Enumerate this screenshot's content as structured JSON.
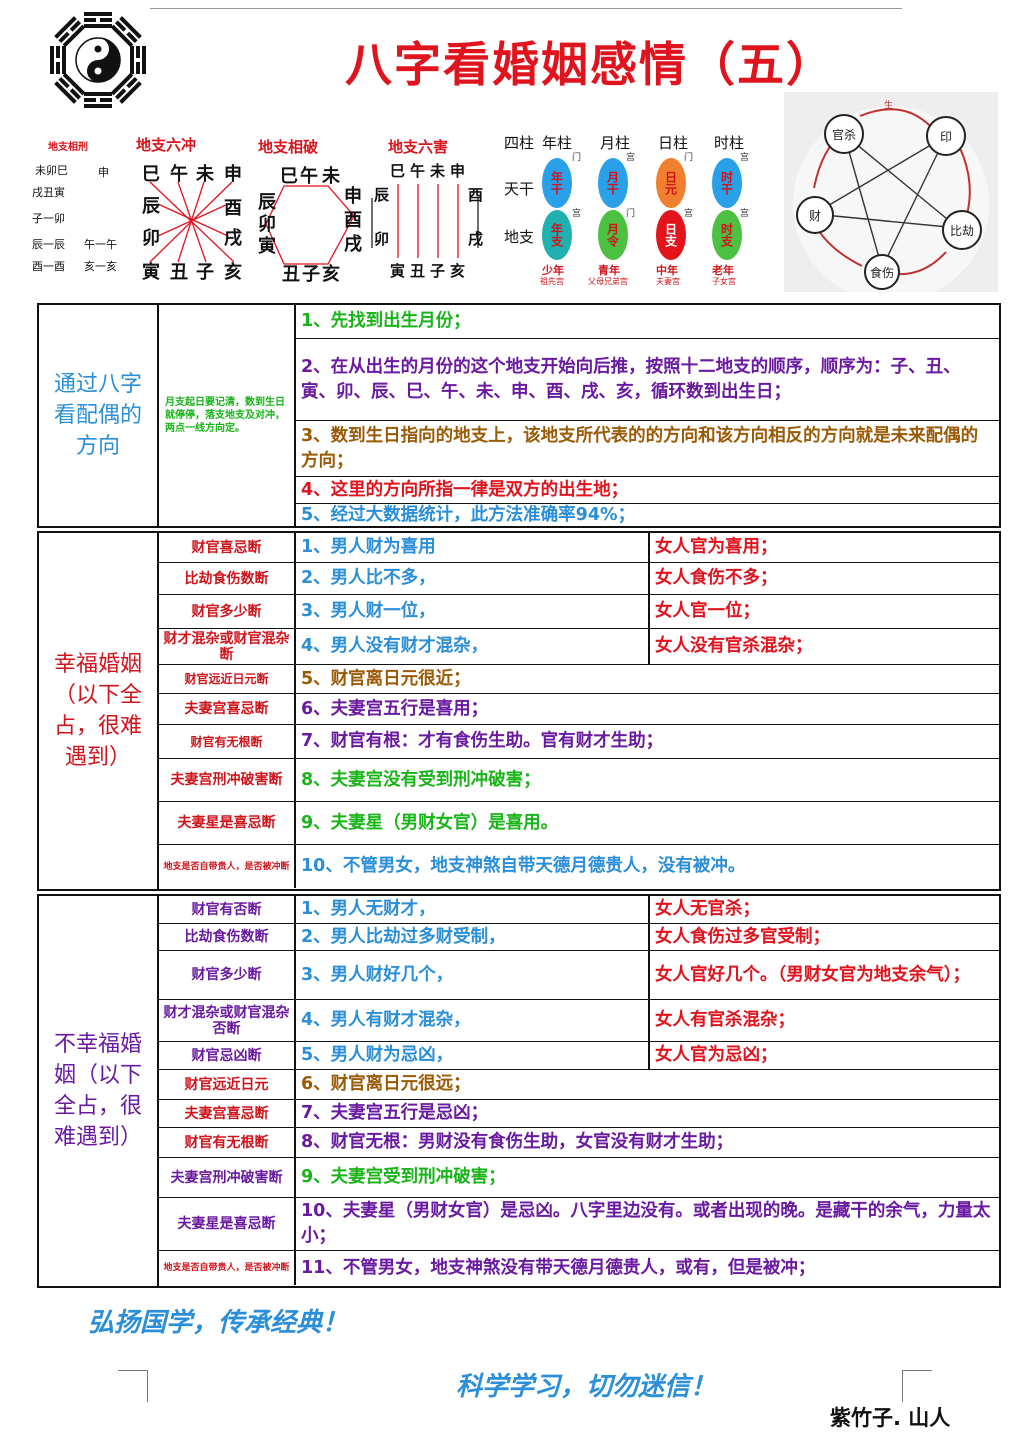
{
  "title": "八字看婚姻感情（五）",
  "banner": {
    "xiangxing": {
      "title": "地支相刑",
      "rows": [
        "未卯巳",
        "戌丑寅",
        "子一卯",
        "辰一辰",
        "酉一酉"
      ],
      "rows_right": [
        "申",
        "午一午",
        "亥一亥"
      ]
    },
    "liuchong": {
      "title": "地支六冲",
      "top": [
        "巳",
        "午",
        "未",
        "申"
      ],
      "left": [
        "辰",
        "卯"
      ],
      "right": [
        "酉",
        "戌"
      ],
      "bottom": [
        "寅",
        "丑",
        "子",
        "亥"
      ]
    },
    "xiangpo": {
      "title": "地支相破",
      "top": [
        "巳",
        "午",
        "未"
      ],
      "left": [
        "辰",
        "卯",
        "寅"
      ],
      "right": [
        "申",
        "酉",
        "戌"
      ],
      "bottom": [
        "丑",
        "子",
        "亥"
      ]
    },
    "liuhai": {
      "title": "地支六害",
      "top": [
        "巳",
        "午",
        "未",
        "申"
      ],
      "left": [
        "辰",
        "卯"
      ],
      "right": [
        "酉",
        "戌"
      ],
      "bottom": [
        "寅",
        "丑",
        "子",
        "亥"
      ]
    },
    "pillars": {
      "headers": [
        "四柱",
        "年柱",
        "月柱",
        "日柱",
        "时柱"
      ],
      "row_labels": [
        "天干",
        "地支"
      ],
      "stems": [
        "年干",
        "月干",
        "日元",
        "时干"
      ],
      "branches": [
        "年支",
        "月令",
        "日支",
        "时支"
      ],
      "ages": [
        "少年",
        "青年",
        "中年",
        "老年"
      ],
      "palaces": [
        "祖先宫",
        "父母兄弟宫",
        "夫妻宫",
        "子女宫"
      ],
      "side_notes": [
        "门",
        "宫",
        "门",
        "宫",
        "宫",
        "门",
        "宫",
        "宫"
      ],
      "colors": {
        "blue": "#2aa0e8",
        "green": "#4cc040",
        "red": "#e4141c",
        "orange": "#f08030",
        "teal": "#20b0b0"
      }
    },
    "wuxing": {
      "nodes": [
        "官杀",
        "印",
        "比劫",
        "食伤",
        "财"
      ],
      "top_label": "生"
    }
  },
  "section1": {
    "label": "通过八字看配偶的方向",
    "note": "月支起日要记清，数到生日就停停，落支地支及对冲，两点一线方向定。",
    "rows": [
      "1、先找到出生月份；",
      "2、在从出生的月份的这个地支开始向后推，按照十二地支的顺序，顺序为：子、丑、寅、卯、辰、巳、午、未、申、酉、戌、亥，循环数到出生日；",
      "3、数到生日指向的地支上，该地支所代表的的方向和该方向相反的方向就是未来配偶的方向；",
      "4、这里的方向所指一律是双方的出生地；",
      "5、经过大数据统计，此方法准确率94%；"
    ]
  },
  "section2": {
    "label": "幸福婚姻（以下全占，很难遇到）",
    "rows": [
      {
        "cat": "财官喜忌断",
        "left": "1、男人财为喜用",
        "right": "女人官为喜用；"
      },
      {
        "cat": "比劫食伤数断",
        "left": "2、男人比不多，",
        "right": "女人食伤不多；"
      },
      {
        "cat": "财官多少断",
        "left": "3、男人财一位，",
        "right": "女人官一位；"
      },
      {
        "cat": "财才混杂或财官混杂断",
        "left": "4、男人没有财才混杂，",
        "right": "女人没有官杀混杂；"
      },
      {
        "cat": "财官远近日元断",
        "text": "5、财官离日元很近；"
      },
      {
        "cat": "夫妻宫喜忌断",
        "text": "6、夫妻宫五行是喜用；"
      },
      {
        "cat": "财官有无根断",
        "text": "7、财官有根：才有食伤生助。官有财才生助；"
      },
      {
        "cat": "夫妻宫刑冲破害断",
        "text": "8、夫妻宫没有受到刑冲破害；"
      },
      {
        "cat": "夫妻星是喜忌断",
        "text": "9、夫妻星（男财女官）是喜用。"
      },
      {
        "cat": "地支是否自带贵人，是否被冲断",
        "text": "10、不管男女，地支神煞自带天德月德贵人，没有被冲。"
      }
    ]
  },
  "section3": {
    "label": "不幸福婚姻（以下全占，很难遇到）",
    "rows": [
      {
        "cat": "财官有否断",
        "left": "1、男人无财才，",
        "right": "女人无官杀；"
      },
      {
        "cat": "比劫食伤数断",
        "left": "2、男人比劫过多财受制，",
        "right": "女人食伤过多官受制；"
      },
      {
        "cat": "财官多少断",
        "left": "3、男人财好几个，",
        "right": "女人官好几个。（男财女官为地支余气）；"
      },
      {
        "cat": "财才混杂或财官混杂否断",
        "left": "4、男人有财才混杂，",
        "right": "女人有官杀混杂；"
      },
      {
        "cat": "财官忌凶断",
        "left": "5、男人财为忌凶，",
        "right": "女人官为忌凶；"
      },
      {
        "cat": "财官远近日元",
        "text": "6、财官离日元很远；"
      },
      {
        "cat": "夫妻宫喜忌断",
        "text": "7、夫妻宫五行是忌凶；"
      },
      {
        "cat": "财官有无根断",
        "text": "8、财官无根：男财没有食伤生助，女官没有财才生助；"
      },
      {
        "cat": "夫妻宫刑冲破害断",
        "text": "9、夫妻宫受到刑冲破害；"
      },
      {
        "cat": "夫妻星是喜忌断",
        "text": "10、夫妻星（男财女官）是忌凶。八字里边没有。或者出现的晚。是藏干的余气，力量太小；"
      },
      {
        "cat": "地支是否自带贵人，是否被冲断",
        "text": "11、不管男女，地支神煞没有带天德月德贵人，或有，但是被冲；"
      }
    ]
  },
  "footer": {
    "slogan1": "弘扬国学，传承经典！",
    "slogan2": "科学学习，切勿迷信！",
    "signature": "紫竹子. 山人"
  }
}
